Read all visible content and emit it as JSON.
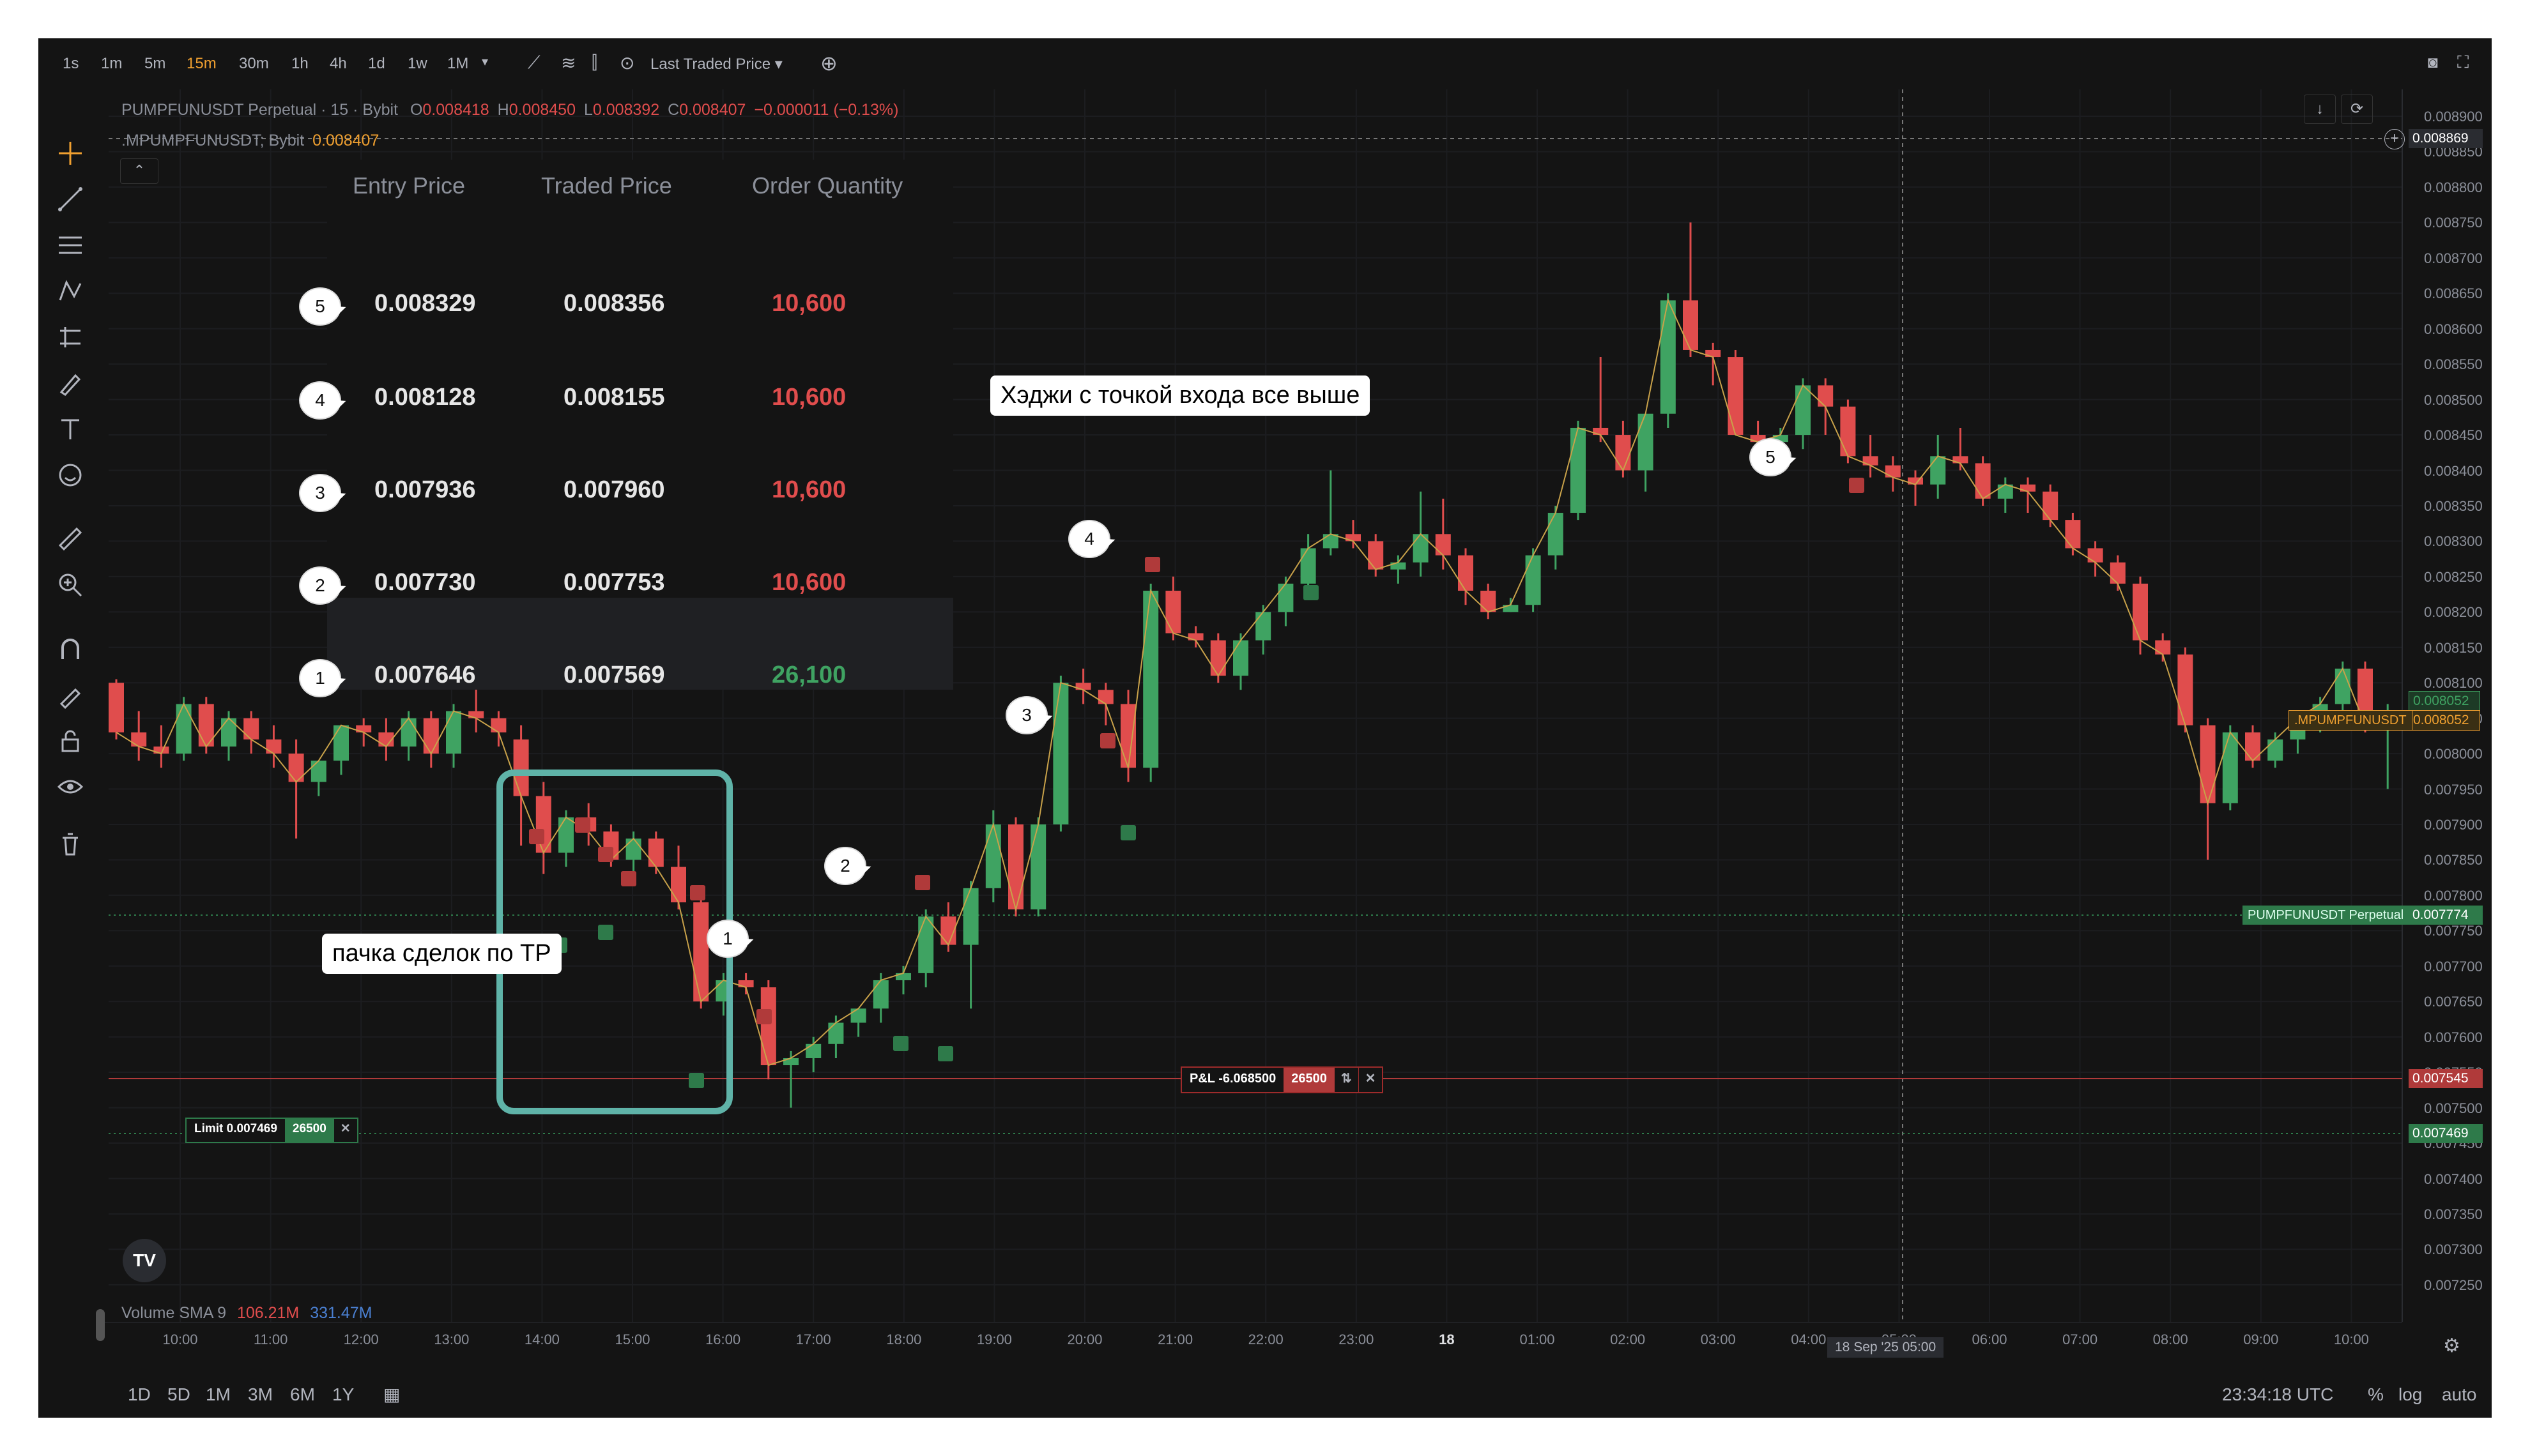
{
  "toolbar": {
    "intervals": [
      "1s",
      "1m",
      "5m",
      "15m",
      "30m",
      "1h",
      "4h",
      "1d",
      "1w",
      "1M"
    ],
    "active_interval": "15m",
    "price_type": "Last Traded Price"
  },
  "legend": {
    "symbol": "PUMPFUNUSDT Perpetual · 15 · Bybit",
    "o_label": "O",
    "o": "0.008418",
    "h_label": "H",
    "h": "0.008450",
    "l_label": "L",
    "l": "0.008392",
    "c_label": "C",
    "c": "0.008407",
    "change": "−0.000011 (−0.13%)",
    "index_symbol": ".MPUMPFUNUSDT; Bybit",
    "index_value": "0.008407"
  },
  "order_table": {
    "headers": [
      "Entry Price",
      "Traded Price",
      "Order Quantity"
    ],
    "rows": [
      {
        "marker": "5",
        "entry": "0.008329",
        "traded": "0.008356",
        "qty": "10,600",
        "qty_color": "#e04d4d"
      },
      {
        "marker": "4",
        "entry": "0.008128",
        "traded": "0.008155",
        "qty": "10,600",
        "qty_color": "#e04d4d"
      },
      {
        "marker": "3",
        "entry": "0.007936",
        "traded": "0.007960",
        "qty": "10,600",
        "qty_color": "#e04d4d"
      },
      {
        "marker": "2",
        "entry": "0.007730",
        "traded": "0.007753",
        "qty": "10,600",
        "qty_color": "#e04d4d"
      },
      {
        "marker": "1",
        "entry": "0.007646",
        "traded": "0.007569",
        "qty": "26,100",
        "qty_color": "#3fa362"
      }
    ]
  },
  "annotations": {
    "hedges": "Хэджи с точкой входа все выше",
    "tp_batch": "пачка сделок по ТР"
  },
  "markers": [
    "1",
    "2",
    "3",
    "4",
    "5"
  ],
  "positions": {
    "pnl_label": "P&L -6.068500",
    "pnl_qty": "26500",
    "limit_label": "Limit 0.007469",
    "limit_qty": "26500"
  },
  "price_axis": {
    "ticks": [
      "0.008900",
      "0.008850",
      "0.008800",
      "0.008750",
      "0.008700",
      "0.008650",
      "0.008600",
      "0.008550",
      "0.008500",
      "0.008450",
      "0.008400",
      "0.008350",
      "0.008300",
      "0.008250",
      "0.008200",
      "0.008150",
      "0.008100",
      "0.008050",
      "0.008000",
      "0.007950",
      "0.007900",
      "0.007850",
      "0.007800",
      "0.007750",
      "0.007700",
      "0.007650",
      "0.007600",
      "0.007550",
      "0.007500",
      "0.007450",
      "0.007400",
      "0.007350",
      "0.007300",
      "0.007250"
    ],
    "crosshair_price": "0.008869",
    "index_price": "0.008052",
    "index_price_2": "0.008052",
    "index_tag": ".MPUMPFUNUSDT",
    "last_price_tag": "PUMPFUNUSDT Perpetual",
    "last_price": "0.007774",
    "position_price": "0.007545",
    "limit_price": "0.007469"
  },
  "time_axis": {
    "ticks": [
      "10:00",
      "11:00",
      "12:00",
      "13:00",
      "14:00",
      "15:00",
      "16:00",
      "17:00",
      "18:00",
      "19:00",
      "20:00",
      "21:00",
      "22:00",
      "23:00",
      "18",
      "01:00",
      "02:00",
      "03:00",
      "04:00",
      "05:00",
      "06:00",
      "07:00",
      "08:00",
      "09:00",
      "10:00"
    ],
    "crosshair_time": "18 Sep '25  05:00"
  },
  "volume": {
    "label": "Volume SMA 9",
    "v1": "106.21M",
    "v2": "331.47M"
  },
  "bottom": {
    "ranges": [
      "1D",
      "5D",
      "1M",
      "3M",
      "6M",
      "1Y"
    ],
    "clock": "23:34:18 UTC",
    "pct": "%",
    "log": "log",
    "auto": "auto"
  },
  "colors": {
    "up": "#3fa362",
    "down": "#e04d4d",
    "bg": "#141414",
    "teal": "#5fb3a8"
  },
  "chart_data": {
    "type": "candlestick",
    "candles": [
      [
        0.0081,
        0.008105,
        0.00802,
        0.00803
      ],
      [
        0.00803,
        0.00806,
        0.00799,
        0.00801
      ],
      [
        0.00801,
        0.00804,
        0.00798,
        0.008
      ],
      [
        0.008,
        0.00808,
        0.00799,
        0.00807
      ],
      [
        0.00807,
        0.00808,
        0.008,
        0.00801
      ],
      [
        0.00801,
        0.00806,
        0.00799,
        0.00805
      ],
      [
        0.00805,
        0.00806,
        0.008,
        0.00802
      ],
      [
        0.00802,
        0.00804,
        0.00798,
        0.008
      ],
      [
        0.008,
        0.00802,
        0.00788,
        0.00796
      ],
      [
        0.00796,
        0.00799,
        0.00794,
        0.00799
      ],
      [
        0.00799,
        0.00804,
        0.00797,
        0.00804
      ],
      [
        0.00804,
        0.00805,
        0.00801,
        0.00803
      ],
      [
        0.00803,
        0.00805,
        0.00799,
        0.00801
      ],
      [
        0.00801,
        0.00806,
        0.00799,
        0.00805
      ],
      [
        0.00805,
        0.00806,
        0.00798,
        0.008
      ],
      [
        0.008,
        0.00807,
        0.00798,
        0.00806
      ],
      [
        0.00806,
        0.0081,
        0.00803,
        0.00805
      ],
      [
        0.00805,
        0.00806,
        0.00801,
        0.00803
      ],
      [
        0.00802,
        0.00804,
        0.00787,
        0.00794
      ],
      [
        0.00794,
        0.00796,
        0.00783,
        0.00786
      ],
      [
        0.00786,
        0.00792,
        0.00784,
        0.00791
      ],
      [
        0.00791,
        0.00793,
        0.00787,
        0.00789
      ],
      [
        0.00789,
        0.0079,
        0.00784,
        0.00785
      ],
      [
        0.00785,
        0.00789,
        0.00783,
        0.00788
      ],
      [
        0.00788,
        0.00789,
        0.00783,
        0.00784
      ],
      [
        0.00784,
        0.00787,
        0.00778,
        0.00779
      ],
      [
        0.00779,
        0.0078,
        0.00764,
        0.00765
      ],
      [
        0.00765,
        0.00769,
        0.00763,
        0.00768
      ],
      [
        0.00768,
        0.00769,
        0.00766,
        0.00767
      ],
      [
        0.00767,
        0.00768,
        0.00754,
        0.00756
      ],
      [
        0.00756,
        0.00758,
        0.0075,
        0.00757
      ],
      [
        0.00757,
        0.0076,
        0.00755,
        0.00759
      ],
      [
        0.00759,
        0.00763,
        0.00757,
        0.00762
      ],
      [
        0.00762,
        0.00764,
        0.0076,
        0.00764
      ],
      [
        0.00764,
        0.00769,
        0.00762,
        0.00768
      ],
      [
        0.00768,
        0.0077,
        0.00766,
        0.00769
      ],
      [
        0.00769,
        0.00778,
        0.00767,
        0.00777
      ],
      [
        0.00777,
        0.00779,
        0.00772,
        0.00773
      ],
      [
        0.00773,
        0.00782,
        0.00764,
        0.00781
      ],
      [
        0.00781,
        0.00792,
        0.00779,
        0.0079
      ],
      [
        0.0079,
        0.00791,
        0.00777,
        0.00778
      ],
      [
        0.00778,
        0.00791,
        0.00777,
        0.0079
      ],
      [
        0.0079,
        0.00811,
        0.00789,
        0.0081
      ],
      [
        0.0081,
        0.00812,
        0.00807,
        0.00809
      ],
      [
        0.00809,
        0.0081,
        0.00804,
        0.00807
      ],
      [
        0.00807,
        0.00809,
        0.00796,
        0.00798
      ],
      [
        0.00798,
        0.00824,
        0.00796,
        0.00823
      ],
      [
        0.00823,
        0.00825,
        0.00816,
        0.00817
      ],
      [
        0.00817,
        0.00818,
        0.00815,
        0.00816
      ],
      [
        0.00816,
        0.00817,
        0.0081,
        0.00811
      ],
      [
        0.00811,
        0.00817,
        0.00809,
        0.00816
      ],
      [
        0.00816,
        0.00821,
        0.00814,
        0.0082
      ],
      [
        0.0082,
        0.00825,
        0.00818,
        0.00824
      ],
      [
        0.00824,
        0.00831,
        0.00823,
        0.00829
      ],
      [
        0.00829,
        0.0084,
        0.00828,
        0.00831
      ],
      [
        0.00831,
        0.00833,
        0.00829,
        0.0083
      ],
      [
        0.0083,
        0.00831,
        0.00825,
        0.00826
      ],
      [
        0.00826,
        0.00828,
        0.00824,
        0.00827
      ],
      [
        0.00827,
        0.00837,
        0.00825,
        0.00831
      ],
      [
        0.00831,
        0.00836,
        0.00826,
        0.00828
      ],
      [
        0.00828,
        0.00829,
        0.00821,
        0.00823
      ],
      [
        0.00823,
        0.00824,
        0.00819,
        0.0082
      ],
      [
        0.0082,
        0.00822,
        0.0082,
        0.00821
      ],
      [
        0.00821,
        0.00829,
        0.0082,
        0.00828
      ],
      [
        0.00828,
        0.00835,
        0.00826,
        0.00834
      ],
      [
        0.00834,
        0.00847,
        0.00833,
        0.00846
      ],
      [
        0.00846,
        0.00856,
        0.00844,
        0.00845
      ],
      [
        0.00845,
        0.00847,
        0.00839,
        0.0084
      ],
      [
        0.0084,
        0.00848,
        0.00837,
        0.00848
      ],
      [
        0.00848,
        0.00865,
        0.00846,
        0.00864
      ],
      [
        0.00864,
        0.00875,
        0.00856,
        0.00857
      ],
      [
        0.00857,
        0.00858,
        0.00852,
        0.00856
      ],
      [
        0.00856,
        0.00857,
        0.00845,
        0.00845
      ],
      [
        0.00845,
        0.00847,
        0.00842,
        0.00844
      ],
      [
        0.00844,
        0.00846,
        0.00842,
        0.00845
      ],
      [
        0.00845,
        0.00853,
        0.00843,
        0.00852
      ],
      [
        0.00852,
        0.00853,
        0.00845,
        0.00849
      ],
      [
        0.00849,
        0.0085,
        0.00841,
        0.00842
      ],
      [
        0.00842,
        0.00845,
        0.00839,
        0.008407
      ],
      [
        0.008407,
        0.00842,
        0.00837,
        0.00839
      ],
      [
        0.00839,
        0.0084,
        0.00835,
        0.00838
      ],
      [
        0.00838,
        0.00845,
        0.00836,
        0.00842
      ],
      [
        0.00842,
        0.00846,
        0.0084,
        0.00841
      ],
      [
        0.00841,
        0.00842,
        0.00835,
        0.00836
      ],
      [
        0.00836,
        0.00839,
        0.00834,
        0.00838
      ],
      [
        0.00838,
        0.00839,
        0.00834,
        0.00837
      ],
      [
        0.00837,
        0.00838,
        0.00832,
        0.00833
      ],
      [
        0.00833,
        0.00834,
        0.00828,
        0.00829
      ],
      [
        0.00829,
        0.0083,
        0.00825,
        0.00827
      ],
      [
        0.00827,
        0.00828,
        0.00823,
        0.00824
      ],
      [
        0.00824,
        0.00825,
        0.00814,
        0.00816
      ],
      [
        0.00816,
        0.00817,
        0.00813,
        0.00814
      ],
      [
        0.00814,
        0.00815,
        0.00803,
        0.00804
      ],
      [
        0.00804,
        0.00805,
        0.00785,
        0.00793
      ],
      [
        0.00793,
        0.00804,
        0.00792,
        0.00803
      ],
      [
        0.00803,
        0.00804,
        0.00798,
        0.00799
      ],
      [
        0.00799,
        0.00803,
        0.00798,
        0.00802
      ],
      [
        0.00802,
        0.00806,
        0.008,
        0.00805
      ],
      [
        0.00805,
        0.00808,
        0.00803,
        0.00807
      ],
      [
        0.00807,
        0.00813,
        0.00806,
        0.00812
      ],
      [
        0.00812,
        0.00813,
        0.00803,
        0.00804
      ],
      [
        0.00804,
        0.00807,
        0.00795,
        0.00806
      ]
    ]
  }
}
